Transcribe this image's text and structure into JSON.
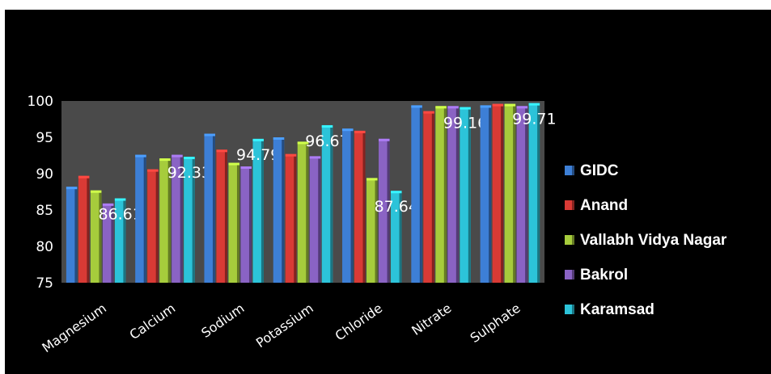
{
  "chart_data": {
    "type": "bar",
    "categories": [
      "Magnesium",
      "Calcium",
      "Sodium",
      "Potassium",
      "Chloride",
      "Nitrate",
      "Sulphate"
    ],
    "series": [
      {
        "name": "GIDC",
        "color": "#3d7fd6",
        "values": [
          88.2,
          92.6,
          95.5,
          95.0,
          96.2,
          99.4,
          99.4
        ]
      },
      {
        "name": "Anand",
        "color": "#d93a35",
        "values": [
          89.7,
          90.6,
          93.3,
          92.7,
          95.9,
          98.6,
          99.6
        ]
      },
      {
        "name": "Vallabh  Vidya Nagar",
        "color": "#a6cc3c",
        "values": [
          87.7,
          92.1,
          91.5,
          94.4,
          89.4,
          99.3,
          99.6
        ]
      },
      {
        "name": "Bakrol",
        "color": "#8a63c4",
        "values": [
          85.9,
          92.6,
          91.0,
          92.4,
          94.8,
          99.3,
          99.3
        ]
      },
      {
        "name": "Karamsad",
        "color": "#2cc3d9",
        "values": [
          86.61,
          92.33,
          94.79,
          96.67,
          87.64,
          99.16,
          99.71
        ]
      }
    ],
    "data_labels": [
      "86.61",
      "92.33",
      "94.79",
      "96.67",
      "87.64",
      "99.16",
      "99.71"
    ],
    "ylim": [
      75,
      100
    ],
    "yticks": [
      "75",
      "80",
      "85",
      "90",
      "95",
      "100"
    ],
    "title": "",
    "xlabel": "",
    "ylabel": "",
    "legend_position": "right",
    "grid": false,
    "background": "#000000",
    "plot_background": "#4a4a4a"
  }
}
